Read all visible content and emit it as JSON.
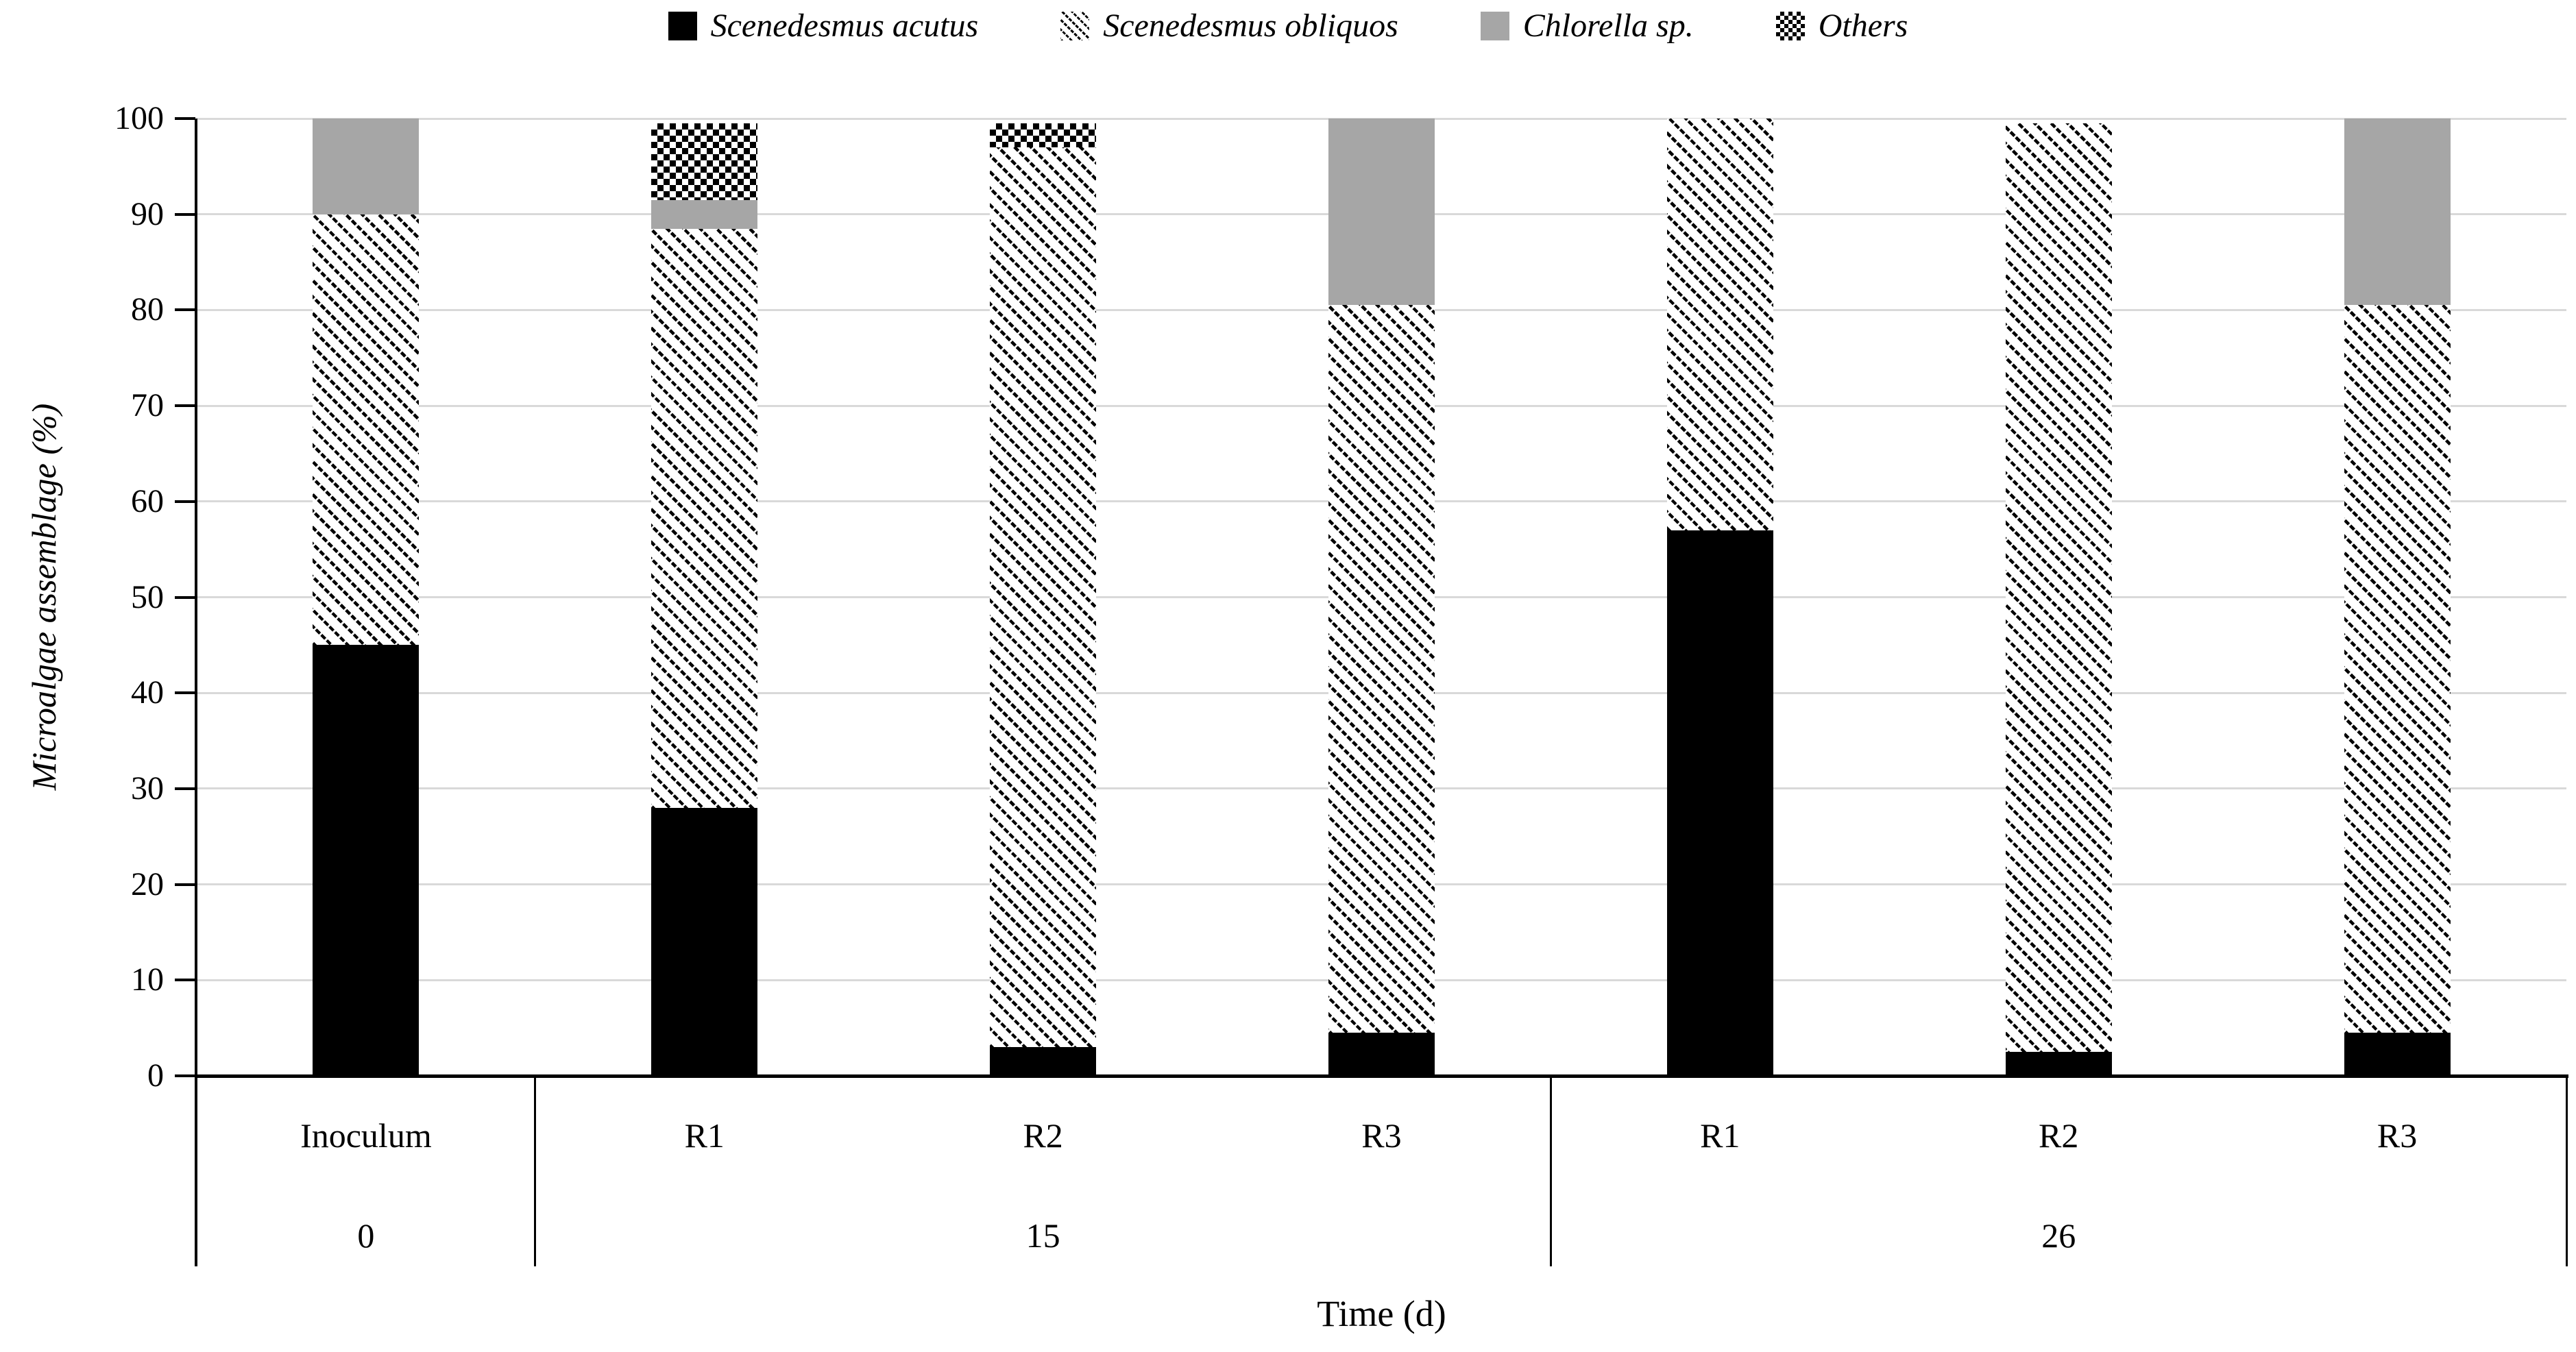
{
  "legend": {
    "items": [
      {
        "label": "Scenedesmus acutus",
        "pattern": "solid-black",
        "icon": "black-square-swatch-icon"
      },
      {
        "label": "Scenedesmus obliquos",
        "pattern": "diagonal-hatch",
        "icon": "diagonal-hatch-swatch-icon"
      },
      {
        "label": "Chlorella sp.",
        "pattern": "solid-gray",
        "icon": "gray-square-swatch-icon"
      },
      {
        "label": "Others",
        "pattern": "checker",
        "icon": "checker-swatch-icon"
      }
    ]
  },
  "y_axis": {
    "title": "Microalgae assemblage (%)",
    "ticks": [
      0,
      10,
      20,
      30,
      40,
      50,
      60,
      70,
      80,
      90,
      100
    ]
  },
  "x_axis": {
    "title": "Time (d)",
    "groups": [
      {
        "time": "0",
        "bars": [
          "Inoculum"
        ]
      },
      {
        "time": "15",
        "bars": [
          "R1",
          "R2",
          "R3"
        ]
      },
      {
        "time": "26",
        "bars": [
          "R1",
          "R2",
          "R3"
        ]
      }
    ]
  },
  "colors": {
    "black": "#000000",
    "gray": "#a6a6a6",
    "gridline": "#d9d9d9",
    "background": "#ffffff"
  },
  "chart_data": {
    "type": "bar",
    "stacked": true,
    "title": "",
    "xlabel": "Time (d)",
    "ylabel": "Microalgae assemblage (%)",
    "ylim": [
      0,
      100
    ],
    "grid": true,
    "legend_position": "top",
    "categories": [
      "Inoculum",
      "R1",
      "R2",
      "R3",
      "R1",
      "R2",
      "R3"
    ],
    "category_times": [
      "0",
      "15",
      "15",
      "15",
      "26",
      "26",
      "26"
    ],
    "series": [
      {
        "name": "Scenedesmus acutus",
        "pattern": "solid-black",
        "values": [
          45,
          28,
          3,
          4.5,
          57,
          2.5,
          4.5
        ]
      },
      {
        "name": "Scenedesmus obliquos",
        "pattern": "diagonal-hatch",
        "values": [
          45,
          60.5,
          94,
          76,
          43,
          97,
          76
        ]
      },
      {
        "name": "Chlorella sp.",
        "pattern": "solid-gray",
        "values": [
          10,
          3,
          0,
          19.5,
          0,
          0,
          19.5
        ]
      },
      {
        "name": "Others",
        "pattern": "checker",
        "values": [
          0,
          8,
          2.5,
          0,
          0,
          0,
          0
        ]
      }
    ]
  }
}
